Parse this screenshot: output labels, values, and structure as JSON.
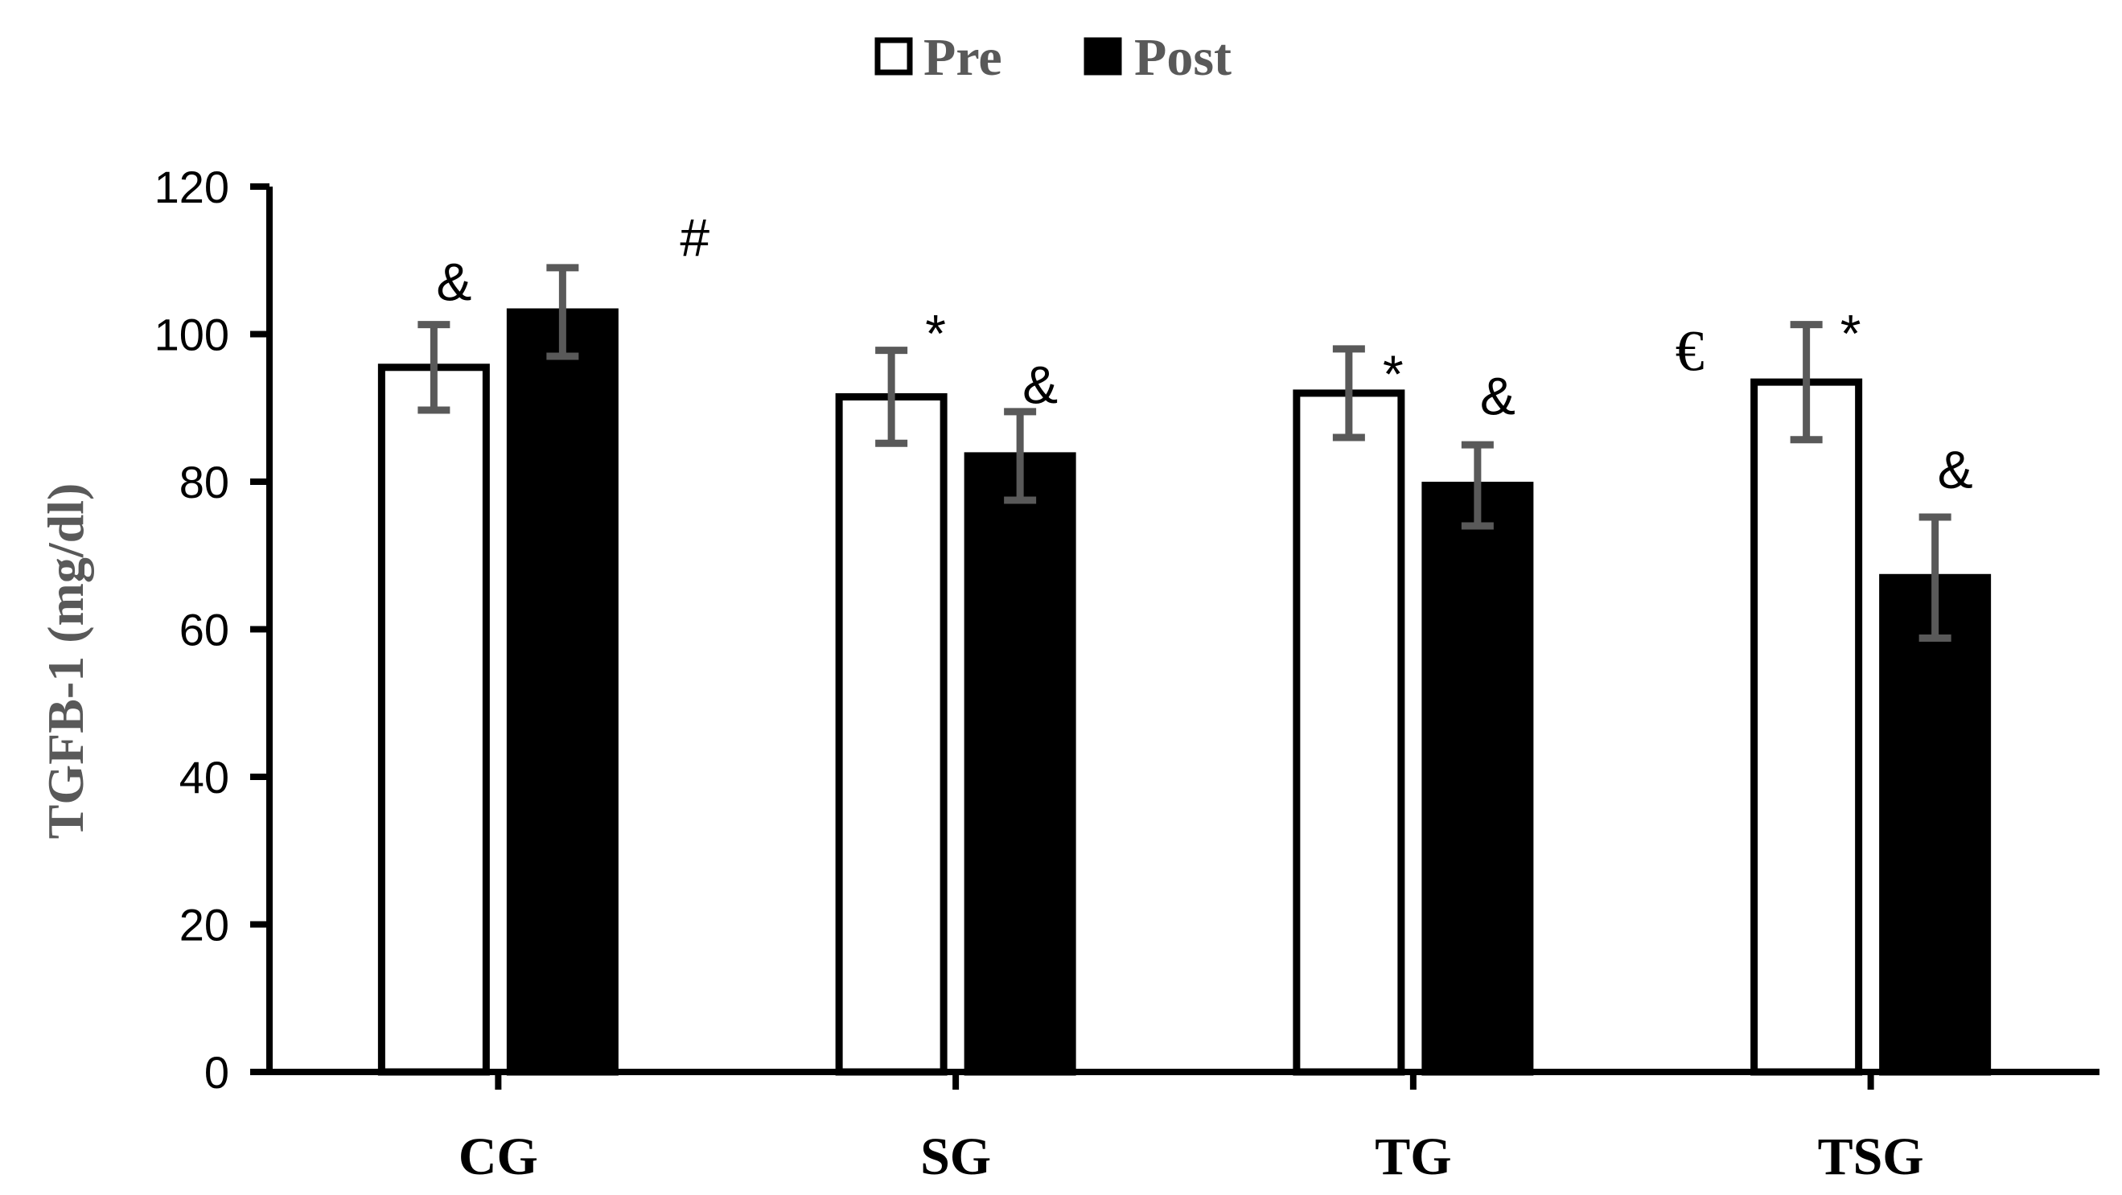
{
  "chart_data": {
    "type": "bar",
    "title": "",
    "xlabel": "",
    "ylabel": "TGFB-1 (mg/dl)",
    "ylim": [
      0,
      120
    ],
    "yticks": [
      0,
      20,
      40,
      60,
      80,
      100,
      120
    ],
    "categories": [
      "CG",
      "SG",
      "TG",
      "TSG"
    ],
    "series": [
      {
        "name": "Pre",
        "fill": "#ffffff",
        "stroke": "#000000",
        "values": [
          95.5,
          91.5,
          92,
          93.5
        ],
        "errors": [
          5.8,
          6.3,
          6.0,
          7.8
        ]
      },
      {
        "name": "Post",
        "fill": "#000000",
        "stroke": "#000000",
        "values": [
          103,
          83.5,
          79.5,
          67
        ],
        "errors": [
          6.0,
          6.0,
          5.5,
          8.2
        ]
      }
    ],
    "legend": {
      "position": "top-center",
      "entries": [
        "Pre",
        "Post"
      ]
    },
    "grid": false,
    "error_bar_color": "#595959",
    "annotations": [
      {
        "text": "&",
        "category": "CG",
        "series": "Pre",
        "y": 107
      },
      {
        "text": "#",
        "between": [
          "CG",
          "SG"
        ],
        "y": 113
      },
      {
        "text": "*",
        "category": "SG",
        "series": "Pre",
        "y": 100
      },
      {
        "text": "&",
        "category": "SG",
        "series": "Post",
        "y": 93
      },
      {
        "text": "*",
        "category": "TG",
        "series": "Pre",
        "y": 94.5
      },
      {
        "text": "&",
        "category": "TG",
        "series": "Post",
        "y": 91.5
      },
      {
        "text": "€",
        "category": "TSG",
        "series": "Pre",
        "side": "left",
        "y": 97.5
      },
      {
        "text": "*",
        "category": "TSG",
        "series": "Pre",
        "y": 100
      },
      {
        "text": "&",
        "category": "TSG",
        "series": "Post",
        "y": 81.5
      }
    ]
  }
}
